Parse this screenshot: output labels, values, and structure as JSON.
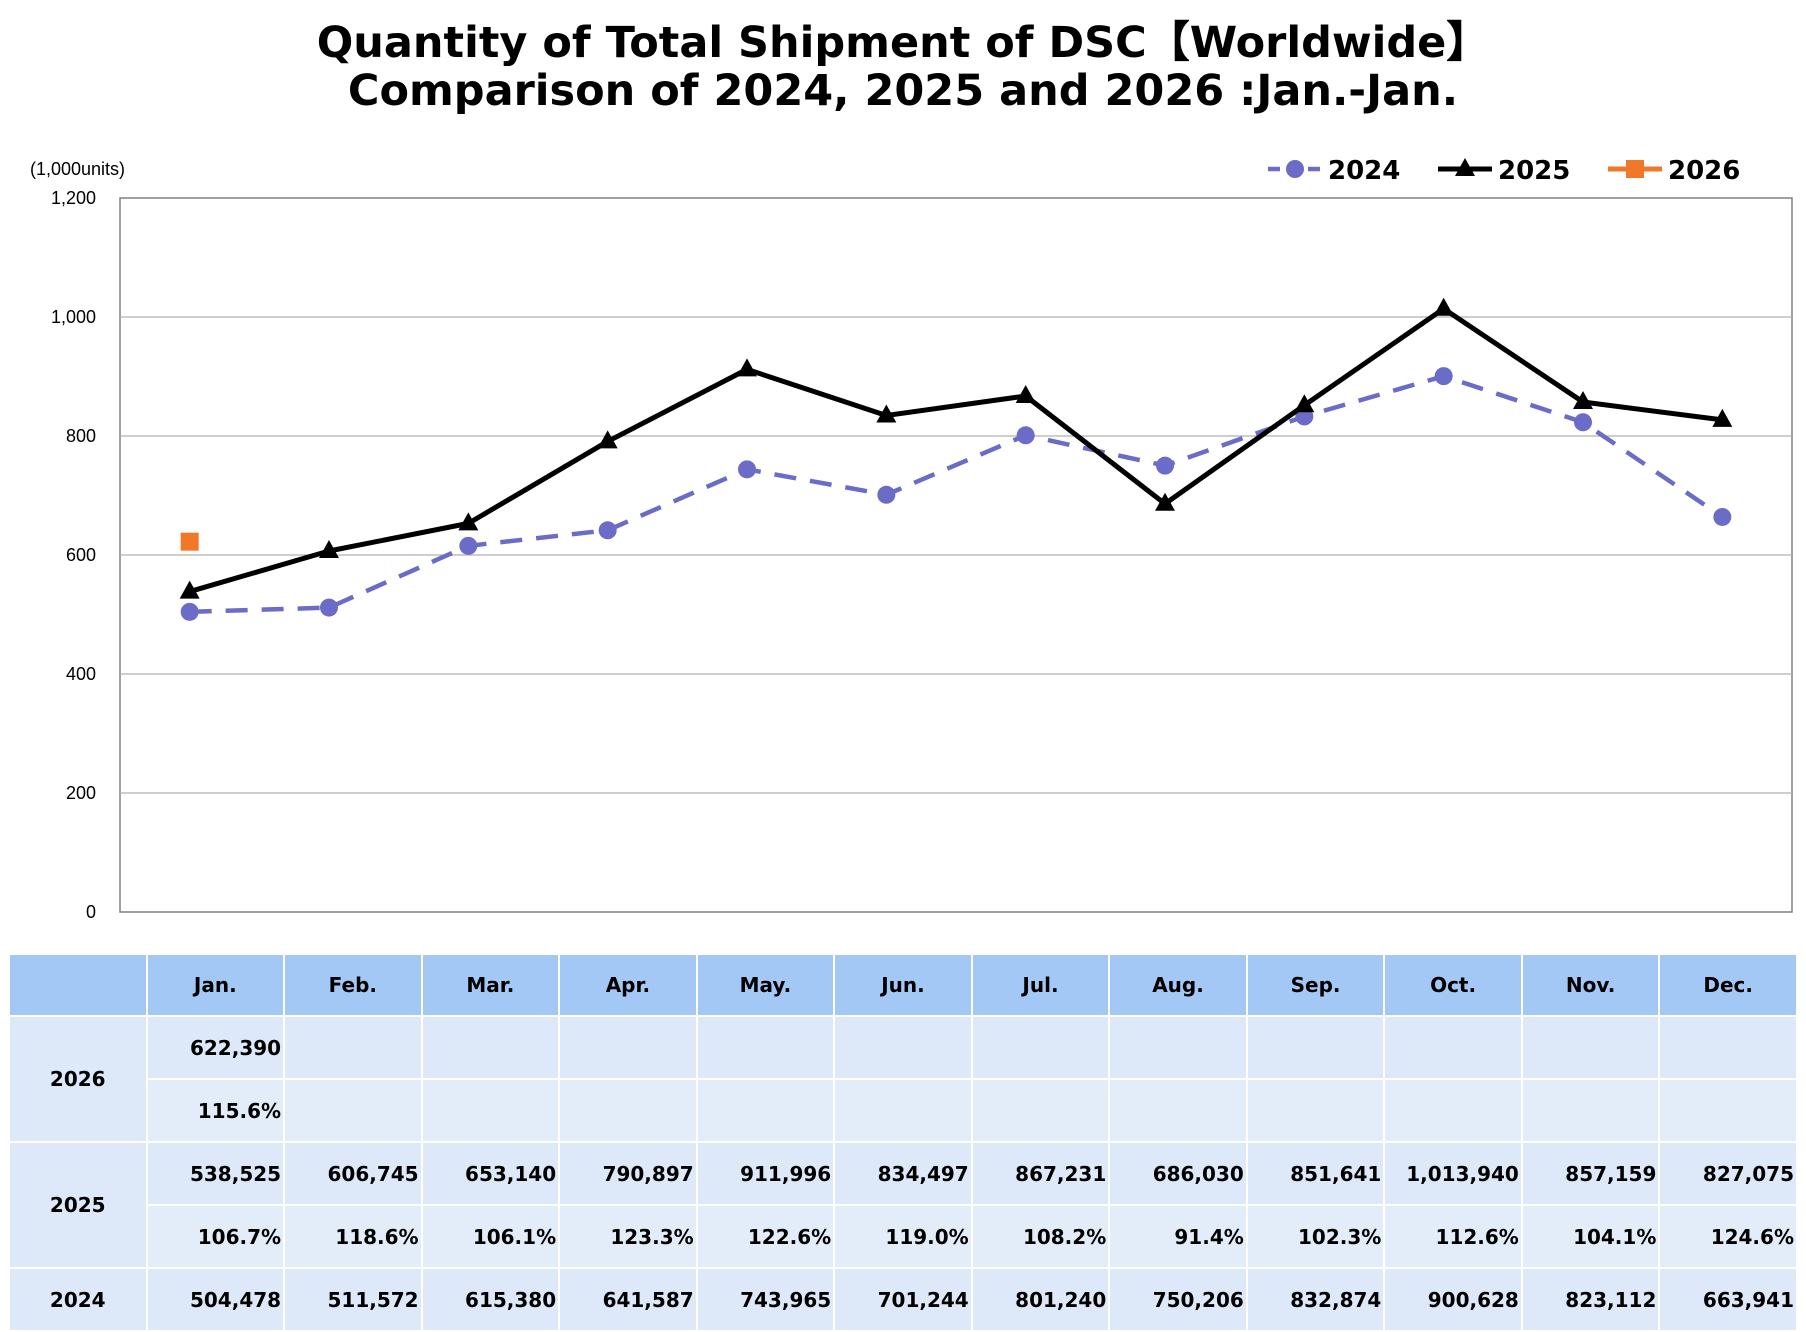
{
  "title_line1": "Quantity of Total Shipment of DSC【Worldwide】",
  "title_line2": "Comparison of 2024, 2025 and 2026 :Jan.-Jan.",
  "unit_label": "(1,000units)",
  "colors": {
    "2024": "#6b6bc8",
    "2025": "#000000",
    "2026": "#f07828",
    "grid": "#b0b0b0",
    "header_bg": "#a4c8f5",
    "cell_bg": "#dde8f8"
  },
  "chart_data": {
    "type": "line",
    "categories": [
      "Jan.",
      "Feb.",
      "Mar.",
      "Apr.",
      "May.",
      "Jun.",
      "Jul.",
      "Aug.",
      "Sep.",
      "Oct.",
      "Nov.",
      "Dec."
    ],
    "ylim": [
      0,
      1200
    ],
    "yticks": [
      0,
      200,
      400,
      600,
      800,
      1000,
      1200
    ],
    "ytick_labels": [
      "0",
      "200",
      "400",
      "600",
      "800",
      "1,000",
      "1,200"
    ],
    "grid": true,
    "legend_position": "top-right",
    "series": [
      {
        "name": "2024",
        "marker": "circle",
        "dashed": true,
        "values": [
          504.478,
          511.572,
          615.38,
          641.587,
          743.965,
          701.244,
          801.24,
          750.206,
          832.874,
          900.628,
          823.112,
          663.941
        ]
      },
      {
        "name": "2025",
        "marker": "triangle",
        "dashed": false,
        "values": [
          538.525,
          606.745,
          653.14,
          790.897,
          911.996,
          834.497,
          867.231,
          686.03,
          851.641,
          1013.94,
          857.159,
          827.075
        ]
      },
      {
        "name": "2026",
        "marker": "square",
        "dashed": false,
        "values": [
          622.39,
          null,
          null,
          null,
          null,
          null,
          null,
          null,
          null,
          null,
          null,
          null
        ]
      }
    ]
  },
  "table": {
    "months": [
      "Jan.",
      "Feb.",
      "Mar.",
      "Apr.",
      "May.",
      "Jun.",
      "Jul.",
      "Aug.",
      "Sep.",
      "Oct.",
      "Nov.",
      "Dec."
    ],
    "rows": [
      {
        "year": "2026",
        "values": [
          "622,390",
          "",
          "",
          "",
          "",
          "",
          "",
          "",
          "",
          "",
          "",
          ""
        ],
        "pct": [
          "115.6%",
          "",
          "",
          "",
          "",
          "",
          "",
          "",
          "",
          "",
          "",
          ""
        ]
      },
      {
        "year": "2025",
        "values": [
          "538,525",
          "606,745",
          "653,140",
          "790,897",
          "911,996",
          "834,497",
          "867,231",
          "686,030",
          "851,641",
          "1,013,940",
          "857,159",
          "827,075"
        ],
        "pct": [
          "106.7%",
          "118.6%",
          "106.1%",
          "123.3%",
          "122.6%",
          "119.0%",
          "108.2%",
          "91.4%",
          "102.3%",
          "112.6%",
          "104.1%",
          "124.6%"
        ]
      },
      {
        "year": "2024",
        "values": [
          "504,478",
          "511,572",
          "615,380",
          "641,587",
          "743,965",
          "701,244",
          "801,240",
          "750,206",
          "832,874",
          "900,628",
          "823,112",
          "663,941"
        ]
      }
    ]
  }
}
